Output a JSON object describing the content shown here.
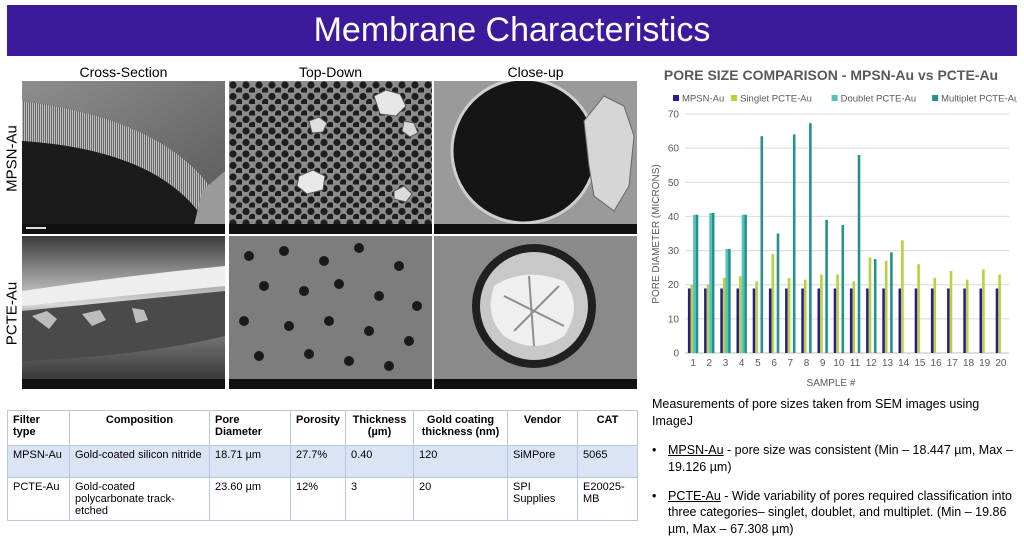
{
  "banner": {
    "title": "Membrane Characteristics"
  },
  "sem_grid": {
    "columns": [
      "Cross-Section",
      "Top-Down",
      "Close-up"
    ],
    "rows": [
      "MPSN-Au",
      "PCTE-Au"
    ]
  },
  "table": {
    "headers": [
      "Filter type",
      "Composition",
      "Pore Diameter",
      "Porosity",
      "Thickness (µm)",
      "Gold coating thickness (nm)",
      "Vendor",
      "CAT"
    ],
    "rows": [
      [
        "MPSN-Au",
        "Gold-coated silicon nitride",
        "18.71 µm",
        "27.7%",
        "0.40",
        "120",
        "SiMPore",
        "5065"
      ],
      [
        "PCTE-Au",
        "Gold-coated  polycarbonate track-etched",
        "23.60 µm",
        "12%",
        "3",
        "20",
        "SPI Supplies",
        "E20025-MB"
      ]
    ]
  },
  "notes": {
    "lead": "Measurements of pore sizes taken from SEM images using ImageJ",
    "bullets": [
      {
        "term": "MPSN-Au",
        "text": " - pore size was consistent (Min – 18.447 µm, Max – 19.126 µm)"
      },
      {
        "term": "PCTE-Au",
        "text": " - Wide variability of pores required classification into three categories– singlet, doublet, and multiplet.  (Min – 19.86 µm, Max – 67.308 µm)"
      }
    ]
  },
  "chart_data": {
    "type": "bar",
    "title": "PORE SIZE COMPARISON - MPSN-Au vs PCTE-Au",
    "xlabel": "SAMPLE #",
    "ylabel": "PORE DIAMETER (MICRONS)",
    "ylim": [
      0,
      70
    ],
    "yticks": [
      0,
      10,
      20,
      30,
      40,
      50,
      60,
      70
    ],
    "legend_position": "top",
    "categories": [
      "1",
      "2",
      "3",
      "4",
      "5",
      "6",
      "7",
      "8",
      "9",
      "10",
      "11",
      "12",
      "13",
      "14",
      "15",
      "16",
      "17",
      "18",
      "19",
      "20"
    ],
    "series": [
      {
        "name": "MPSN-Au",
        "color": "#2e1a8c",
        "values": [
          18.9,
          18.9,
          18.9,
          18.9,
          18.9,
          18.9,
          18.9,
          18.9,
          18.9,
          18.9,
          18.9,
          18.9,
          18.9,
          18.9,
          18.9,
          18.9,
          18.9,
          18.9,
          18.9,
          18.9
        ]
      },
      {
        "name": "Singlet PCTE-Au",
        "color": "#b5d43b",
        "values": [
          20.0,
          20.0,
          22.0,
          22.5,
          21.0,
          29.0,
          22.0,
          21.5,
          23.0,
          23.0,
          21.0,
          28.0,
          27.0,
          33.0,
          26.0,
          22.0,
          24.0,
          21.5,
          24.5,
          23.0
        ]
      },
      {
        "name": "Doublet PCTE-Au",
        "color": "#4fc2c2",
        "values": [
          40.5,
          41.0,
          30.5,
          40.5,
          null,
          null,
          null,
          null,
          null,
          null,
          null,
          null,
          null,
          null,
          null,
          null,
          null,
          null,
          null,
          null
        ]
      },
      {
        "name": "Multiplet PCTE-Au",
        "color": "#26908c",
        "values": [
          40.5,
          41.0,
          30.5,
          40.5,
          63.5,
          35.0,
          64.0,
          67.3,
          39.0,
          37.5,
          58.0,
          27.5,
          29.5,
          null,
          null,
          null,
          null,
          null,
          null,
          null
        ]
      }
    ]
  }
}
